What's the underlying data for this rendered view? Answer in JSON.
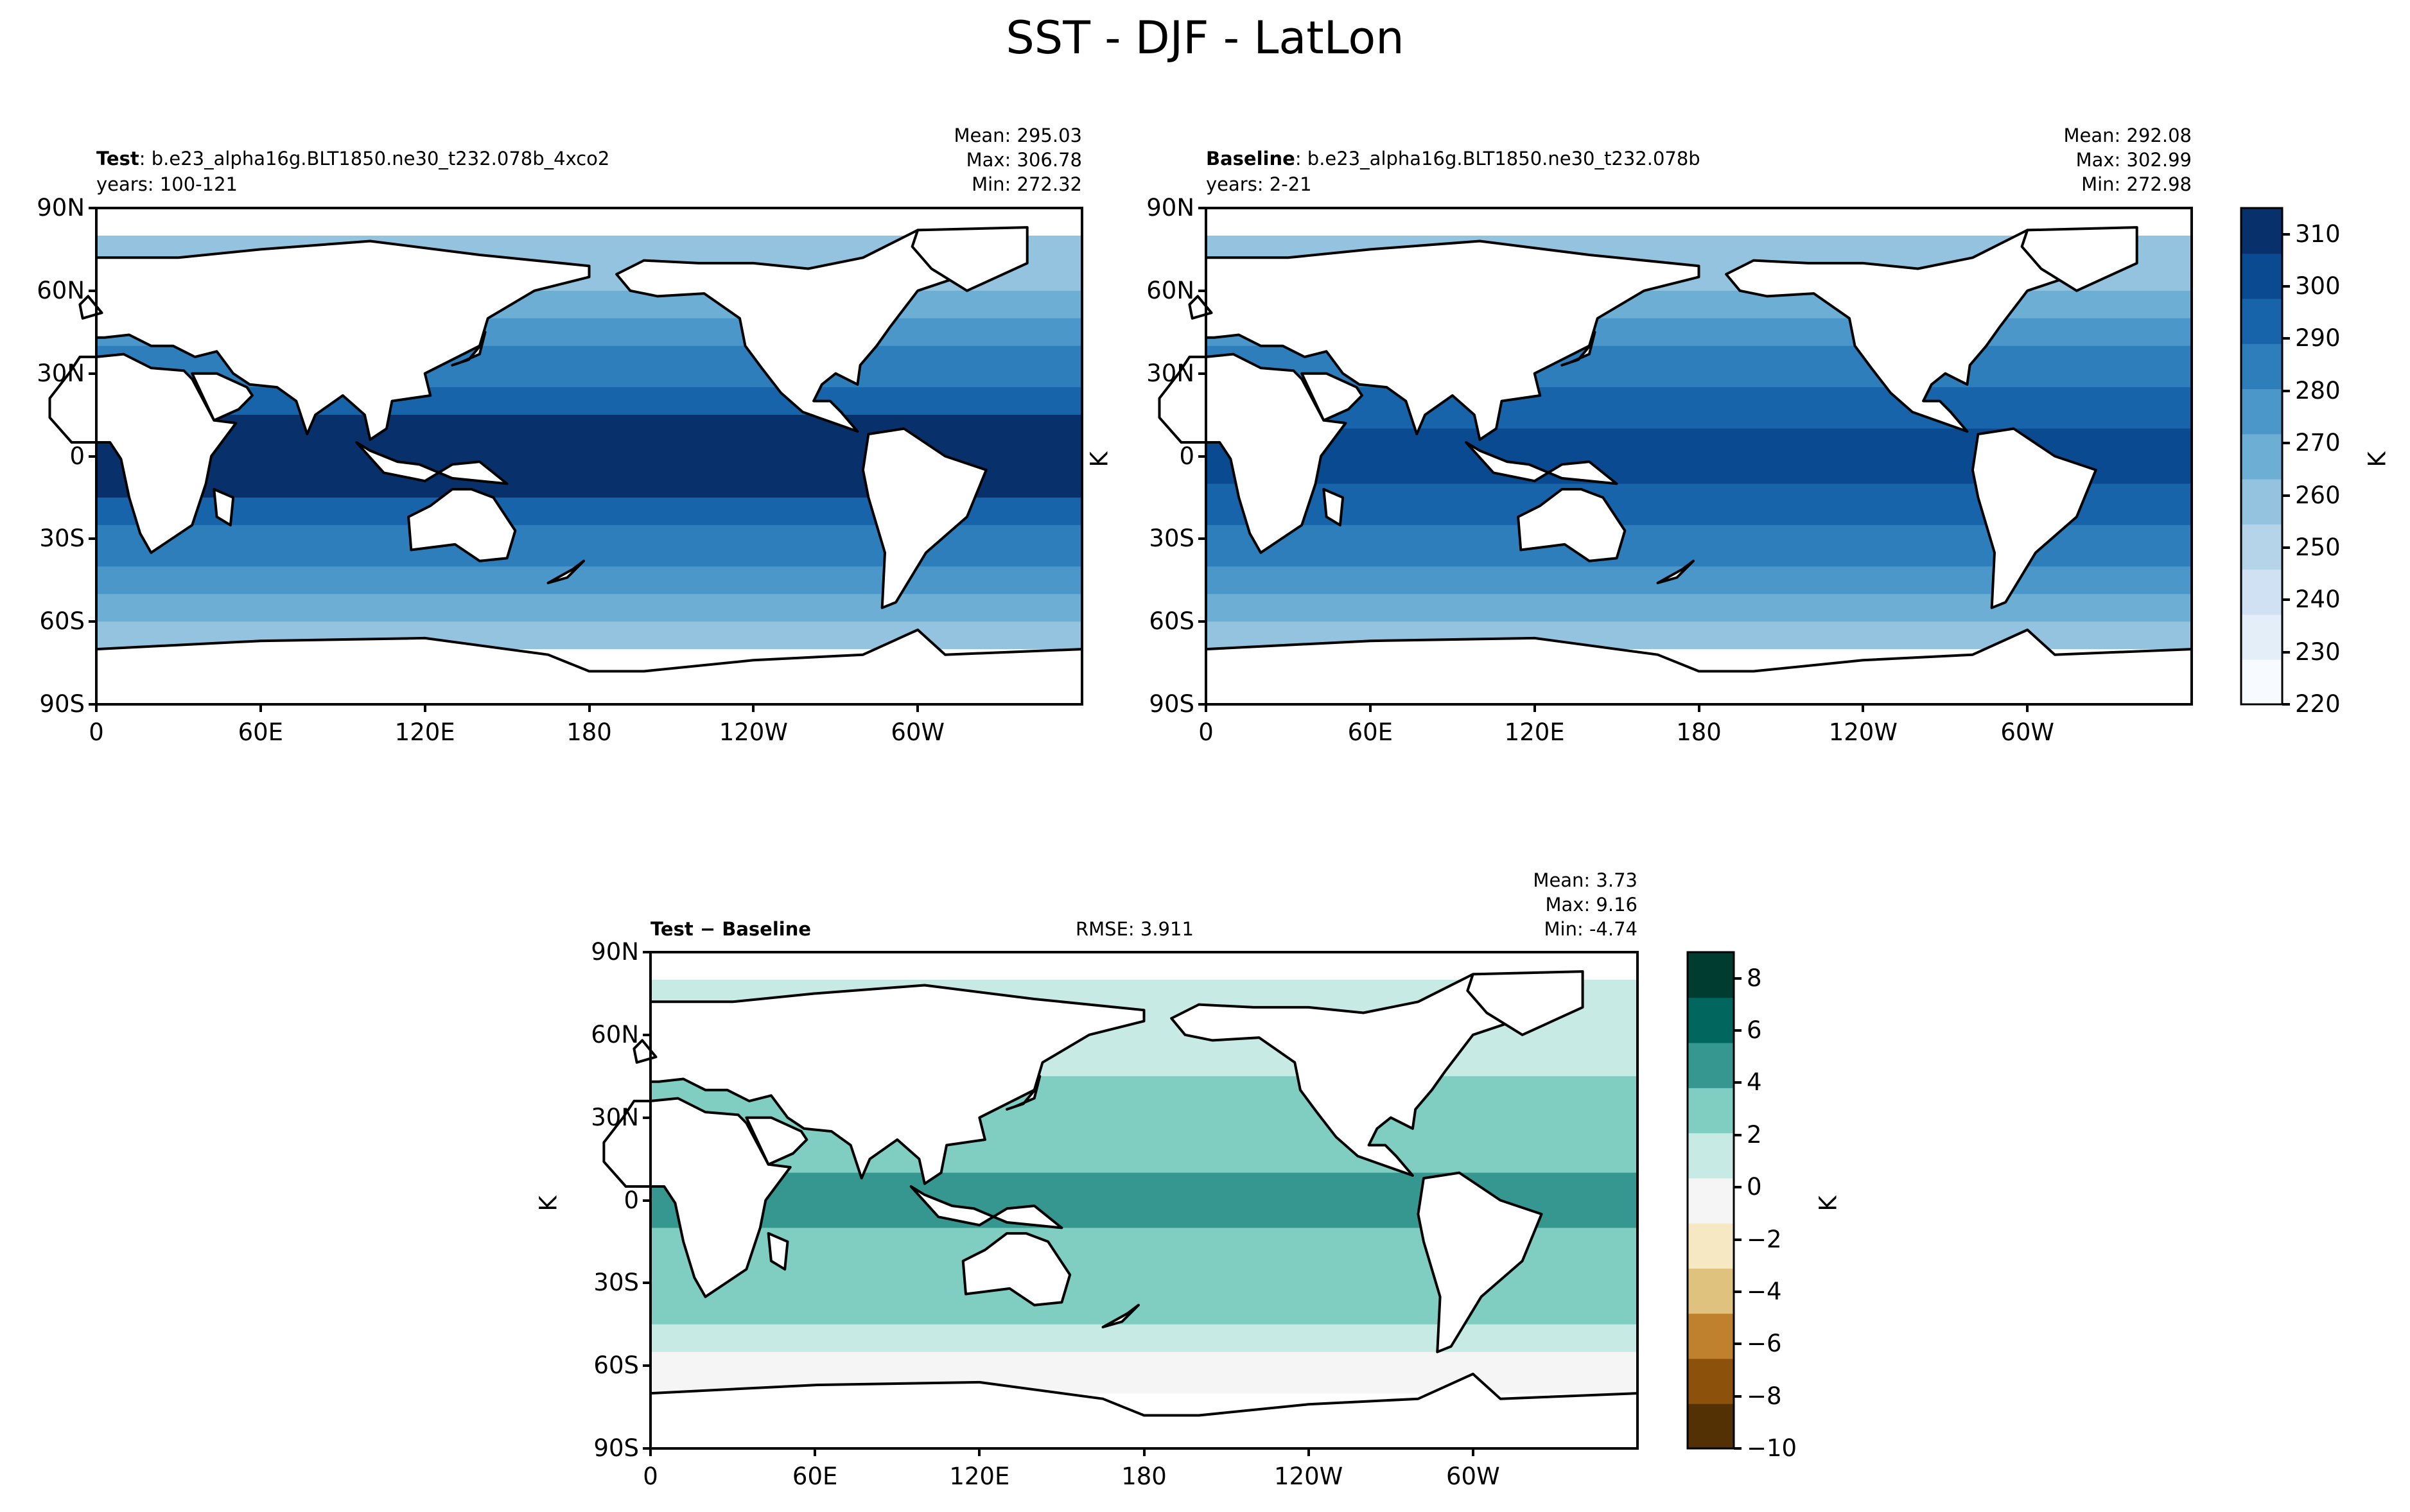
{
  "figure": {
    "title": "SST - DJF - LatLon"
  },
  "chart_data": [
    {
      "type": "heatmap",
      "panel": "test",
      "title_bold": "Test",
      "title_rest": ": b.e23_alpha16g.BLT1850.ne30_t232.078b_4xco2",
      "years": "years: 100-121",
      "stats": {
        "mean": "Mean: 295.03",
        "max": "Max: 306.78",
        "min": "Min: 272.32"
      },
      "x_ticks": [
        "0",
        "60E",
        "120E",
        "180",
        "120W",
        "60W"
      ],
      "y_ticks": [
        "90N",
        "60N",
        "30N",
        "0",
        "30S",
        "60S",
        "90S"
      ],
      "ylabel": "",
      "units": "K"
    },
    {
      "type": "heatmap",
      "panel": "baseline",
      "title_bold": "Baseline",
      "title_rest": ": b.e23_alpha16g.BLT1850.ne30_t232.078b",
      "years": "years: 2-21",
      "stats": {
        "mean": "Mean: 292.08",
        "max": "Max: 302.99",
        "min": "Min: 272.98"
      },
      "x_ticks": [
        "0",
        "60E",
        "120E",
        "180",
        "120W",
        "60W"
      ],
      "y_ticks": [
        "90N",
        "60N",
        "30N",
        "0",
        "30S",
        "60S",
        "90S"
      ],
      "ylabel": "K",
      "colorbar": {
        "label": "K",
        "range": [
          220,
          315
        ],
        "ticks": [
          "310",
          "300",
          "290",
          "280",
          "270",
          "260",
          "250",
          "240",
          "230",
          "220"
        ],
        "levels": 19,
        "colors": [
          "#f7fbff",
          "#e3eef9",
          "#cfe1f2",
          "#b5d4e9",
          "#93c3df",
          "#6daed5",
          "#4b97c9",
          "#2f7ebc",
          "#1864aa",
          "#0a4a90",
          "#08306b"
        ]
      }
    },
    {
      "type": "heatmap",
      "panel": "difference",
      "title_bold": "Test − Baseline",
      "rmse": "RMSE: 3.911",
      "stats": {
        "mean": "Mean:  3.73",
        "max": "Max:  9.16",
        "min": "Min: -4.74"
      },
      "x_ticks": [
        "0",
        "60E",
        "120E",
        "180",
        "120W",
        "60W"
      ],
      "y_ticks": [
        "90N",
        "60N",
        "30N",
        "0",
        "30S",
        "60S",
        "90S"
      ],
      "ylabel": "K",
      "colorbar": {
        "label": "K",
        "range": [
          -10,
          9
        ],
        "ticks": [
          "8",
          "6",
          "4",
          "2",
          "0",
          "−2",
          "−4",
          "−6",
          "−8",
          "−10"
        ],
        "colors": [
          "#543005",
          "#8c510a",
          "#bf812d",
          "#dfc27d",
          "#f6e8c3",
          "#f5f5f5",
          "#c7eae5",
          "#80cdc1",
          "#35978f",
          "#01665e",
          "#003c30"
        ]
      }
    }
  ]
}
